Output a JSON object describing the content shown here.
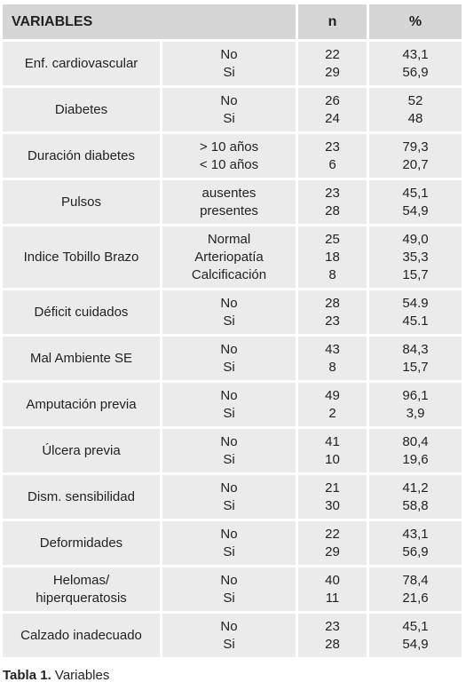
{
  "table": {
    "header": [
      "VARIABLES",
      "n",
      "%"
    ],
    "rows": [
      {
        "label": "Enf. cardiovascular",
        "options": [
          "No",
          "Si"
        ],
        "n": [
          "22",
          "29"
        ],
        "pct": [
          "43,1",
          "56,9"
        ]
      },
      {
        "label": "Diabetes",
        "options": [
          "No",
          "Si"
        ],
        "n": [
          "26",
          "24"
        ],
        "pct": [
          "52",
          "48"
        ]
      },
      {
        "label": "Duración diabetes",
        "options": [
          "> 10 años",
          "< 10 años"
        ],
        "n": [
          "23",
          "6"
        ],
        "pct": [
          "79,3",
          "20,7"
        ]
      },
      {
        "label": "Pulsos",
        "options": [
          "ausentes",
          "presentes"
        ],
        "n": [
          "23",
          "28"
        ],
        "pct": [
          "45,1",
          "54,9"
        ]
      },
      {
        "label": "Indice Tobillo Brazo",
        "options": [
          "Normal",
          "Arteriopatía",
          "Calcificación"
        ],
        "n": [
          "25",
          "18",
          "8"
        ],
        "pct": [
          "49,0",
          "35,3",
          "15,7"
        ]
      },
      {
        "label": "Déficit cuidados",
        "options": [
          "No",
          "Si"
        ],
        "n": [
          "28",
          "23"
        ],
        "pct": [
          "54.9",
          "45.1"
        ]
      },
      {
        "label": "Mal Ambiente SE",
        "options": [
          "No",
          "Si"
        ],
        "n": [
          "43",
          "8"
        ],
        "pct": [
          "84,3",
          "15,7"
        ]
      },
      {
        "label": "Amputación previa",
        "options": [
          "No",
          "Si"
        ],
        "n": [
          "49",
          "2"
        ],
        "pct": [
          "96,1",
          "3,9"
        ]
      },
      {
        "label": "Úlcera previa",
        "options": [
          "No",
          "Si"
        ],
        "n": [
          "41",
          "10"
        ],
        "pct": [
          "80,4",
          "19,6"
        ]
      },
      {
        "label": "Dism. sensibilidad",
        "options": [
          "No",
          "Si"
        ],
        "n": [
          "21",
          "30"
        ],
        "pct": [
          "41,2",
          "58,8"
        ]
      },
      {
        "label": "Deformidades",
        "options": [
          "No",
          "Si"
        ],
        "n": [
          "22",
          "29"
        ],
        "pct": [
          "43,1",
          "56,9"
        ]
      },
      {
        "label": "Helomas/ hiperqueratosis",
        "options": [
          "No",
          "Si"
        ],
        "n": [
          "40",
          "11"
        ],
        "pct": [
          "78,4",
          "21,6"
        ]
      },
      {
        "label": "Calzado inadecuado",
        "options": [
          "No",
          "Si"
        ],
        "n": [
          "23",
          "28"
        ],
        "pct": [
          "45,1",
          "54,9"
        ]
      }
    ]
  },
  "caption": {
    "label": "Tabla 1.",
    "text": "Variables"
  }
}
